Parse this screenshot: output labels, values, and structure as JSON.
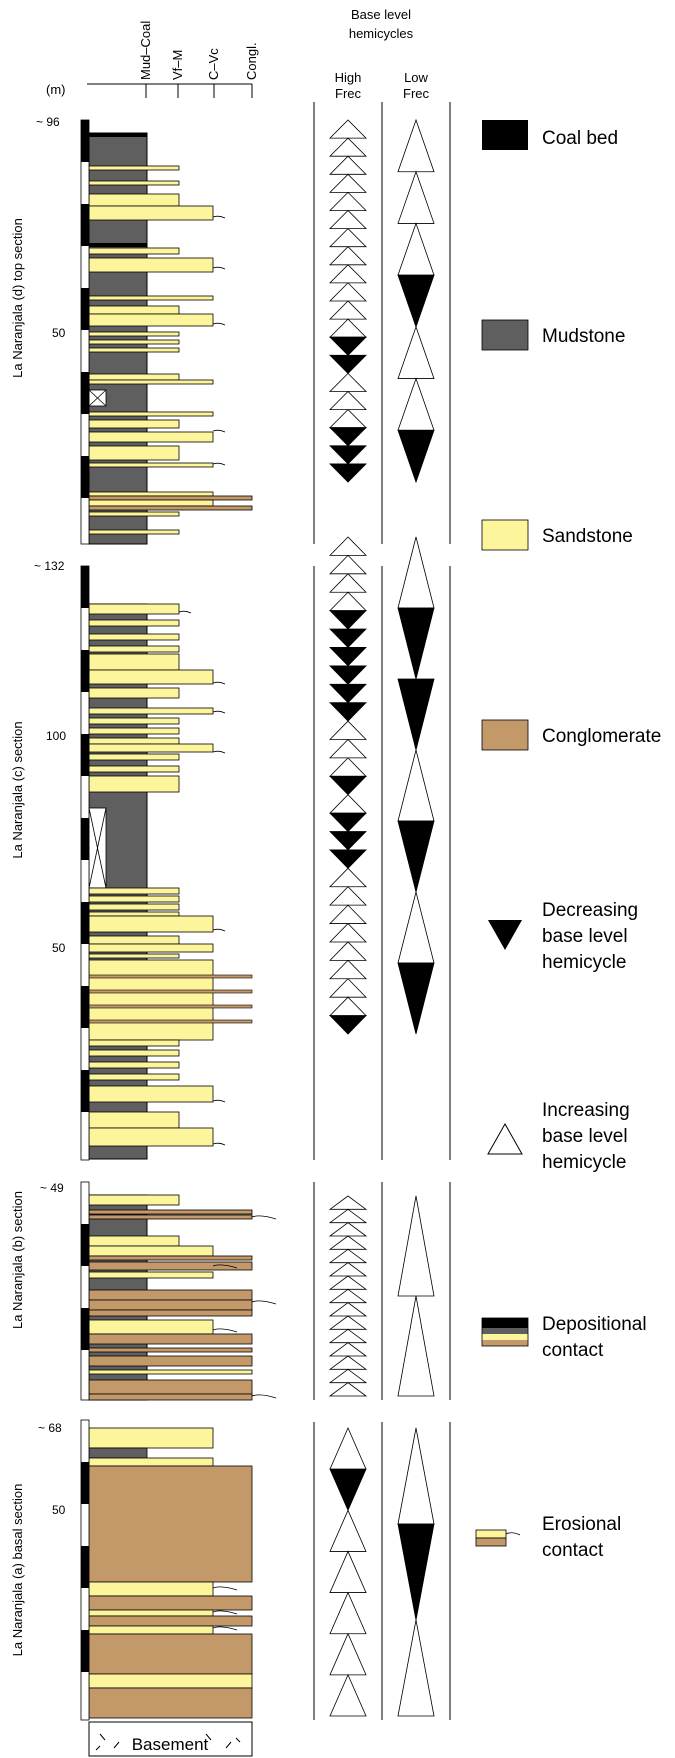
{
  "header": {
    "grain_sizes": [
      "Mud–Coal",
      "Vf–M",
      "C–Vc",
      "Congl."
    ],
    "unit": "(m)",
    "base_level_title_line1": "Base level",
    "base_level_title_line2": "hemicycles",
    "high_freq_line1": "High",
    "high_freq_line2": "Frec",
    "low_freq_line1": "Low",
    "low_freq_line2": "Frec"
  },
  "sections": [
    {
      "id": "d",
      "label": "La Naranjala (d) top section",
      "top_label": "~ 96",
      "mid_label": "50",
      "high_triangles": [
        "inc",
        "inc",
        "inc",
        "inc",
        "inc",
        "inc",
        "inc",
        "inc",
        "inc",
        "inc",
        "inc",
        "inc",
        "dec",
        "dec",
        "inc",
        "inc",
        "inc",
        "dec",
        "dec",
        "dec"
      ],
      "low_triangles": [
        "inc",
        "inc",
        "inc",
        "dec",
        "inc",
        "inc",
        "dec"
      ]
    },
    {
      "id": "c",
      "label": "La Naranjala (c) section",
      "top_label": "~ 132",
      "mid_label": "100",
      "low_label": "50",
      "high_triangles": [
        "inc",
        "inc",
        "inc",
        "inc",
        "dec",
        "dec",
        "dec",
        "dec",
        "dec",
        "dec",
        "inc",
        "inc",
        "inc",
        "dec",
        "inc",
        "dec",
        "dec",
        "dec",
        "inc",
        "inc",
        "inc",
        "inc",
        "inc",
        "inc",
        "inc",
        "inc",
        "dec"
      ],
      "low_triangles": [
        "inc",
        "dec",
        "dec",
        "inc",
        "dec",
        "inc",
        "dec"
      ]
    },
    {
      "id": "b",
      "label": "La Naranjala (b) section",
      "top_label": "~ 49",
      "high_triangles": [
        "inc",
        "inc",
        "inc",
        "inc",
        "inc",
        "inc",
        "inc",
        "inc",
        "inc",
        "inc",
        "inc",
        "inc",
        "inc",
        "inc",
        "inc"
      ],
      "low_triangles": [
        "inc",
        "inc"
      ]
    },
    {
      "id": "a",
      "label": "La Naranjala (a) basal section",
      "top_label": "~ 68",
      "mid_label": "50",
      "base_label": "Basement",
      "high_triangles": [
        "inc",
        "dec",
        "inc",
        "inc",
        "inc",
        "inc",
        "inc"
      ],
      "low_triangles": [
        "inc",
        "dec",
        "inc"
      ]
    }
  ],
  "legend": {
    "coal": "Coal bed",
    "mudstone": "Mudstone",
    "sandstone": "Sandstone",
    "conglomerate": "Conglomerate",
    "decreasing_line1": "Decreasing",
    "decreasing_line2": "base level",
    "decreasing_line3": "hemicycle",
    "increasing_line1": "Increasing",
    "increasing_line2": "base level",
    "increasing_line3": "hemicycle",
    "depositional_line1": "Depositional",
    "depositional_line2": "contact",
    "erosional_line1": "Erosional",
    "erosional_line2": "contact"
  },
  "colors": {
    "coal": "#000000",
    "mudstone": "#5f5f5f",
    "sandstone": "#fdf59b",
    "conglomerate": "#c4996a"
  }
}
